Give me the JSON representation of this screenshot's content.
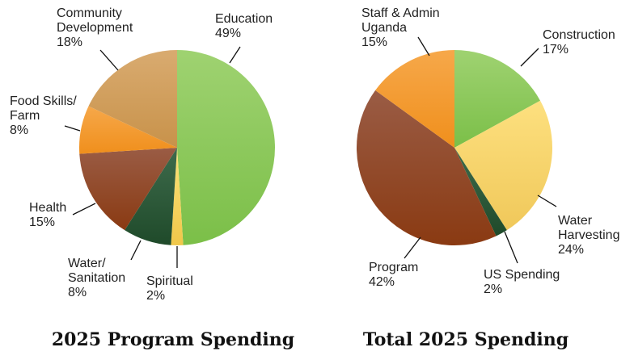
{
  "chart_data": [
    {
      "type": "pie",
      "title": "2025 Program Spending",
      "categories": [
        "Education",
        "Spiritual",
        "Water/ Sanitation",
        "Health",
        "Food Skills/ Farm",
        "Community Development"
      ],
      "values": [
        49,
        2,
        8,
        15,
        8,
        18
      ],
      "labels": [
        "Education\n49%",
        "Spiritual\n2%",
        "Water/\nSanitation\n8%",
        "Health\n15%",
        "Food Skills/\nFarm\n8%",
        "Community\nDevelopment\n18%"
      ],
      "colors": [
        [
          "#9fd271",
          "#7bbf48"
        ],
        [
          "#fbe27a",
          "#f0c74a"
        ],
        [
          "#3e6b4c",
          "#1f4a2a"
        ],
        [
          "#9a5c45",
          "#8a3a12"
        ],
        [
          "#f6a84a",
          "#f08f1c"
        ],
        [
          "#d9ab70",
          "#c8924a"
        ]
      ]
    },
    {
      "type": "pie",
      "title": "Total 2025 Spending",
      "categories": [
        "Construction",
        "Water Harvesting",
        "US Spending",
        "Program",
        "Staff & Admin Uganda"
      ],
      "values": [
        17,
        24,
        2,
        42,
        15
      ],
      "labels": [
        "Construction\n17%",
        "Water\nHarvesting\n24%",
        "US Spending\n2%",
        "Program\n42%",
        "Staff & Admin\nUganda\n15%"
      ],
      "colors": [
        [
          "#9fd271",
          "#7bbf48"
        ],
        [
          "#fde07f",
          "#f0c85a"
        ],
        [
          "#3e6b4c",
          "#1f4a2a"
        ],
        [
          "#9a5c45",
          "#8a3a12"
        ],
        [
          "#f6a84a",
          "#f08f1c"
        ]
      ]
    }
  ]
}
